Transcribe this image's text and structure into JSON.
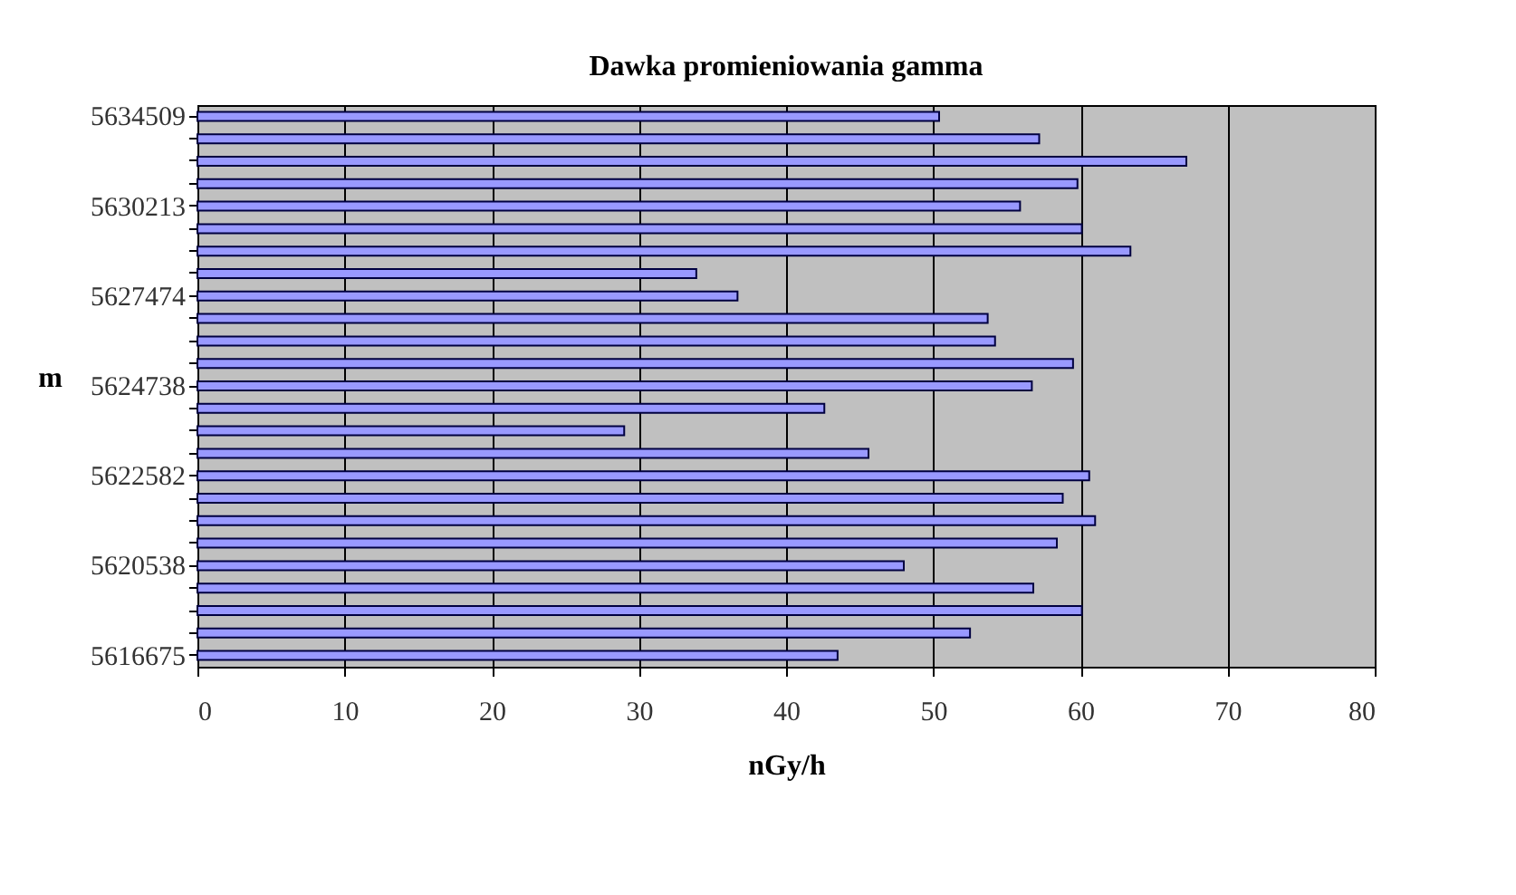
{
  "chart_data": {
    "type": "bar",
    "orientation": "horizontal",
    "title": "Dawka promieniowania gamma",
    "xlabel": "nGy/h",
    "ylabel": "m",
    "categories": [
      "5634509",
      null,
      null,
      null,
      "5630213",
      null,
      null,
      null,
      "5627474",
      null,
      null,
      null,
      "5624738",
      null,
      null,
      null,
      "5622582",
      null,
      null,
      null,
      "5620538",
      null,
      null,
      null,
      "5616675"
    ],
    "values": [
      50.4,
      57.2,
      67.2,
      59.8,
      55.9,
      60.1,
      63.4,
      33.9,
      36.7,
      53.7,
      54.2,
      59.5,
      56.7,
      42.6,
      29,
      45.6,
      60.6,
      58.8,
      61,
      58.4,
      48,
      56.8,
      60.1,
      52.5,
      43.5
    ],
    "color": "#9999ff",
    "xlim": [
      0,
      80
    ],
    "xticks": [
      0,
      10,
      20,
      30,
      40,
      50,
      60,
      70,
      80
    ],
    "grid": "x"
  }
}
